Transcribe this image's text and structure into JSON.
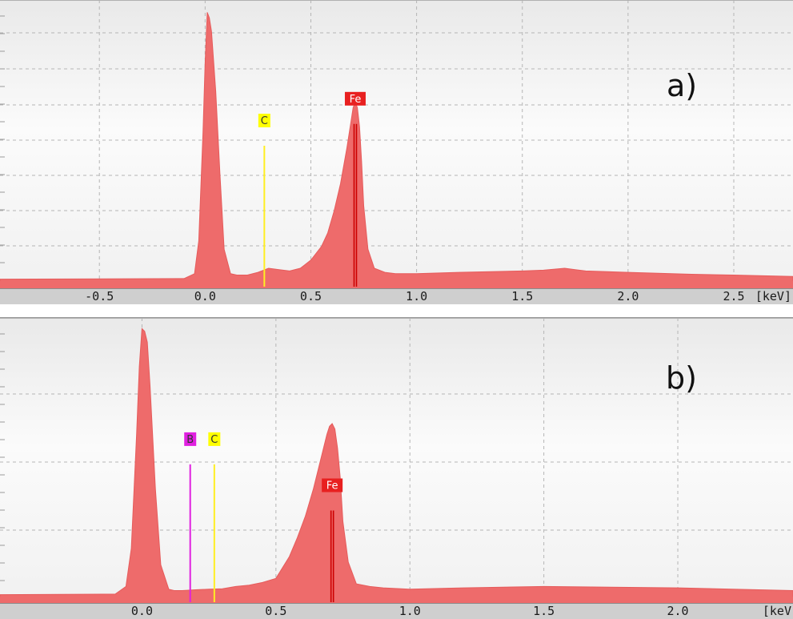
{
  "chart_data": [
    {
      "type": "area",
      "panel_label": "a)",
      "unit_label": "[keV]",
      "xlim": [
        -0.97,
        2.78
      ],
      "ylim": [
        0,
        100
      ],
      "x_ticks": [
        -0.5,
        0.0,
        0.5,
        1.0,
        1.5,
        2.0,
        2.5
      ],
      "x_tick_labels": [
        "-0.5",
        "0.0",
        "0.5",
        "1.0",
        "1.5",
        "2.0",
        "2.5"
      ],
      "grid": true,
      "fill_color": "#ee6b6b",
      "series": [
        {
          "x": [
            -0.97,
            -0.1,
            -0.05,
            -0.03,
            -0.01,
            0.0,
            0.01,
            0.02,
            0.03,
            0.05,
            0.07,
            0.09,
            0.12,
            0.15,
            0.2,
            0.25,
            0.3,
            0.35,
            0.4,
            0.45,
            0.5,
            0.55,
            0.58,
            0.61,
            0.64,
            0.67,
            0.69,
            0.7,
            0.71,
            0.72,
            0.73,
            0.74,
            0.75,
            0.77,
            0.8,
            0.85,
            0.9,
            1.0,
            1.2,
            1.5,
            1.6,
            1.7,
            1.75,
            1.8,
            2.0,
            2.3,
            2.5,
            2.78
          ],
          "y": [
            1,
            1.2,
            3,
            15,
            55,
            80,
            99,
            97,
            92,
            70,
            40,
            12,
            3,
            2.5,
            2.5,
            3.5,
            5,
            4.5,
            4,
            5,
            8,
            13,
            18,
            26,
            36,
            49,
            59,
            64,
            66,
            64,
            57,
            44,
            28,
            12,
            5,
            3.5,
            3,
            3,
            3.5,
            4,
            4.3,
            5,
            4.5,
            4,
            3.5,
            2.8,
            2.5,
            2
          ]
        }
      ],
      "markers": [
        {
          "label": "C",
          "x": 0.28,
          "line_top": 50,
          "color": "#ffff00",
          "line_color": "#ffee22",
          "text_color": "#333333"
        },
        {
          "label": "Fe",
          "x": 0.71,
          "line_top": 58,
          "color": "#e82020",
          "line_color": "#cc0000",
          "text_color": "#ffffff"
        }
      ]
    },
    {
      "type": "area",
      "panel_label": "b)",
      "unit_label": "[keV",
      "xlim": [
        -0.53,
        2.43
      ],
      "ylim": [
        0,
        100
      ],
      "x_ticks": [
        0.0,
        0.5,
        1.0,
        1.5,
        2.0
      ],
      "x_tick_labels": [
        "0.0",
        "0.5",
        "1.0",
        "1.5",
        "2.0"
      ],
      "grid": true,
      "fill_color": "#ee6b6b",
      "series": [
        {
          "x": [
            -0.53,
            -0.1,
            -0.06,
            -0.04,
            -0.02,
            -0.01,
            0.0,
            0.01,
            0.02,
            0.03,
            0.05,
            0.07,
            0.1,
            0.12,
            0.15,
            0.2,
            0.25,
            0.3,
            0.35,
            0.4,
            0.45,
            0.5,
            0.55,
            0.58,
            0.61,
            0.64,
            0.67,
            0.69,
            0.7,
            0.71,
            0.72,
            0.73,
            0.74,
            0.75,
            0.77,
            0.8,
            0.85,
            0.9,
            1.0,
            1.2,
            1.5,
            2.0,
            2.43
          ],
          "y": [
            1,
            1.2,
            4,
            18,
            60,
            85,
            99,
            98,
            94,
            78,
            40,
            12,
            3,
            2.5,
            2.5,
            2.8,
            3,
            3.2,
            4,
            4.5,
            5.5,
            7,
            15,
            22,
            30,
            40,
            52,
            60,
            63,
            64,
            62,
            55,
            44,
            28,
            13,
            5,
            4,
            3.5,
            3,
            3.5,
            4,
            3.5,
            2.5
          ]
        }
      ],
      "markers": [
        {
          "label": "B",
          "x": 0.18,
          "line_top": 49,
          "color": "#e020e0",
          "line_color": "#e020e0",
          "text_color": "#333333"
        },
        {
          "label": "C",
          "x": 0.27,
          "line_top": 49,
          "color": "#ffff00",
          "line_color": "#ffee22",
          "text_color": "#333333"
        },
        {
          "label": "Fe",
          "x": 0.71,
          "line_top": 32,
          "color": "#e82020",
          "line_color": "#cc0000",
          "text_color": "#ffffff"
        }
      ]
    }
  ]
}
